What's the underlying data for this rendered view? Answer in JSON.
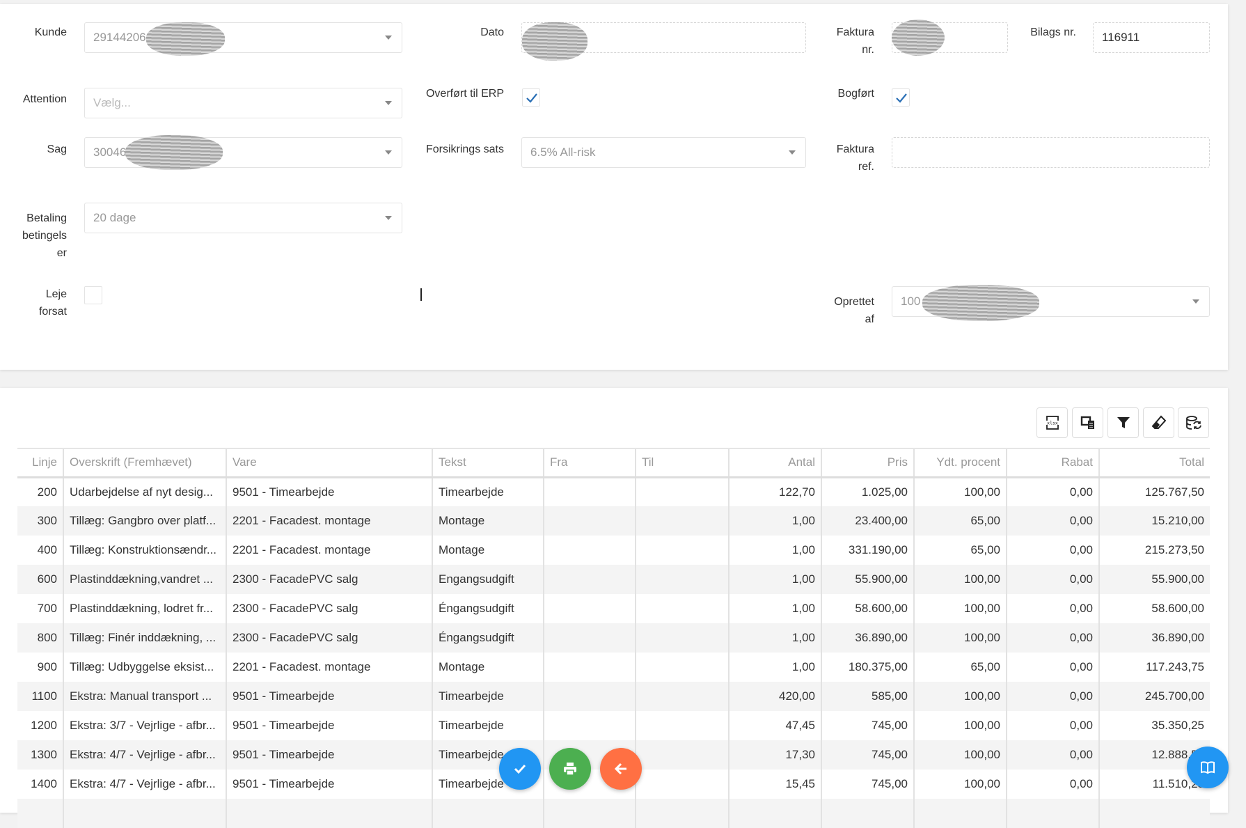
{
  "form": {
    "kunde": {
      "label": "Kunde",
      "value": "29144206"
    },
    "dato": {
      "label": "Dato",
      "value": ""
    },
    "faktura_nr": {
      "label_1": "Faktura",
      "label_2": "nr.",
      "value": ""
    },
    "bilags_nr": {
      "label": "Bilags nr.",
      "value": "116911"
    },
    "attention": {
      "label": "Attention",
      "placeholder": "Vælg..."
    },
    "overfoert_erp": {
      "label": "Overført til ERP",
      "checked": true
    },
    "bogfoert": {
      "label": "Bogført",
      "checked": true
    },
    "sag": {
      "label": "Sag",
      "value": "30046"
    },
    "forsikrings_sats": {
      "label": "Forsikrings sats",
      "value": "6.5% All-risk"
    },
    "faktura_ref": {
      "label_1": "Faktura",
      "label_2": "ref.",
      "value": ""
    },
    "betaling": {
      "label_1": "Betaling",
      "label_2": "betingels",
      "label_3": "er",
      "value": "20 dage"
    },
    "leje_forsat": {
      "label_1": "Leje",
      "label_2": "forsat",
      "checked": false
    },
    "oprettet_af": {
      "label_1": "Oprettet",
      "label_2": "af",
      "value": "100"
    }
  },
  "toolbar": [
    "xlsx-export-icon",
    "column-chooser-icon",
    "filter-icon",
    "eraser-icon",
    "database-refresh-icon"
  ],
  "table": {
    "columns": [
      "Linje",
      "Overskrift (Fremhævet)",
      "Vare",
      "Tekst",
      "Fra",
      "Til",
      "Antal",
      "Pris",
      "Ydt. procent",
      "Rabat",
      "Total"
    ],
    "rows": [
      [
        "200",
        "Udarbejdelse af nyt desig...",
        "9501 - Timearbejde",
        "Timearbejde",
        "",
        "",
        "122,70",
        "1.025,00",
        "100,00",
        "0,00",
        "125.767,50"
      ],
      [
        "300",
        "Tillæg: Gangbro over platf...",
        "2201 - Facadest. montage",
        "Montage",
        "",
        "",
        "1,00",
        "23.400,00",
        "65,00",
        "0,00",
        "15.210,00"
      ],
      [
        "400",
        "Tillæg: Konstruktionsændr...",
        "2201 - Facadest. montage",
        "Montage",
        "",
        "",
        "1,00",
        "331.190,00",
        "65,00",
        "0,00",
        "215.273,50"
      ],
      [
        "600",
        "Plastinddækning,vandret ...",
        "2300 - FacadePVC salg",
        "Engangsudgift",
        "",
        "",
        "1,00",
        "55.900,00",
        "100,00",
        "0,00",
        "55.900,00"
      ],
      [
        "700",
        "Plastinddækning, lodret fr...",
        "2300 - FacadePVC salg",
        "Éngangsudgift",
        "",
        "",
        "1,00",
        "58.600,00",
        "100,00",
        "0,00",
        "58.600,00"
      ],
      [
        "800",
        "Tillæg: Finér inddækning, ...",
        "2300 - FacadePVC salg",
        "Éngangsudgift",
        "",
        "",
        "1,00",
        "36.890,00",
        "100,00",
        "0,00",
        "36.890,00"
      ],
      [
        "900",
        "Tillæg: Udbyggelse eksist...",
        "2201 - Facadest. montage",
        "Montage",
        "",
        "",
        "1,00",
        "180.375,00",
        "65,00",
        "0,00",
        "117.243,75"
      ],
      [
        "1100",
        "Ekstra: Manual transport ...",
        "9501 - Timearbejde",
        "Timearbejde",
        "",
        "",
        "420,00",
        "585,00",
        "100,00",
        "0,00",
        "245.700,00"
      ],
      [
        "1200",
        "Ekstra: 3/7 - Vejrlige - afbr...",
        "9501 - Timearbejde",
        "Timearbejde",
        "",
        "",
        "47,45",
        "745,00",
        "100,00",
        "0,00",
        "35.350,25"
      ],
      [
        "1300",
        "Ekstra: 4/7 - Vejrlige - afbr...",
        "9501 - Timearbejde",
        "Timearbejde",
        "",
        "",
        "17,30",
        "745,00",
        "100,00",
        "0,00",
        "12.888,50"
      ],
      [
        "1400",
        "Ekstra: 4/7 - Vejrlige - afbr...",
        "9501 - Timearbejde",
        "Timearbejde",
        "",
        "",
        "15,45",
        "745,00",
        "100,00",
        "0,00",
        "11.510,25"
      ]
    ]
  },
  "fabs": {
    "approve": {
      "icon": "check-icon",
      "color": "#2196f3"
    },
    "print": {
      "icon": "print-icon",
      "color": "#4caf50"
    },
    "back": {
      "icon": "arrow-left-icon",
      "color": "#ff7043"
    },
    "help": {
      "icon": "book-icon",
      "color": "#2196f3"
    }
  },
  "colors": {
    "check": "#2a6fb5"
  }
}
